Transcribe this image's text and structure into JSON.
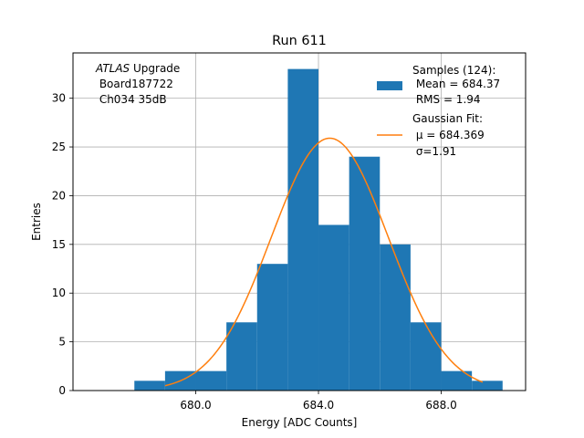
{
  "chart_data": {
    "type": "bar",
    "title": "Run 611",
    "xlabel": "Energy [ADC Counts]",
    "ylabel": "Entries",
    "xlim": [
      676.0,
      690.75
    ],
    "ylim": [
      0,
      34.65
    ],
    "xticks": [
      680.0,
      684.0,
      688.0
    ],
    "xtick_labels": [
      "680.0",
      "684.0",
      "688.0"
    ],
    "yticks": [
      0,
      5,
      10,
      15,
      20,
      25,
      30
    ],
    "ytick_labels": [
      "0",
      "5",
      "10",
      "15",
      "20",
      "25",
      "30"
    ],
    "grid": true,
    "bins": {
      "edges": [
        678,
        679,
        680,
        681,
        682,
        683,
        684,
        685,
        686,
        687,
        688,
        689,
        690
      ],
      "counts": [
        1,
        2,
        2,
        7,
        13,
        33,
        17,
        24,
        15,
        7,
        2,
        1
      ],
      "color": "#1f77b4"
    },
    "fit": {
      "mu": 684.369,
      "sigma": 1.91,
      "peak": 25.9,
      "x_range": [
        679.0,
        689.35
      ],
      "color": "#ff7f0e"
    },
    "annotation": {
      "experiment_italic": "ATLAS",
      "experiment_rest": " Upgrade",
      "board": " Board187722",
      "channel": " Ch034 35dB"
    },
    "legend": {
      "placement": "top-right",
      "samples_label": "Samples (124):",
      "samples_mean": " Mean = 684.37",
      "samples_rms": " RMS = 1.94",
      "fit_label": "Gaussian Fit:",
      "fit_mu": " μ = 684.369",
      "fit_sigma": " σ=1.91"
    }
  }
}
